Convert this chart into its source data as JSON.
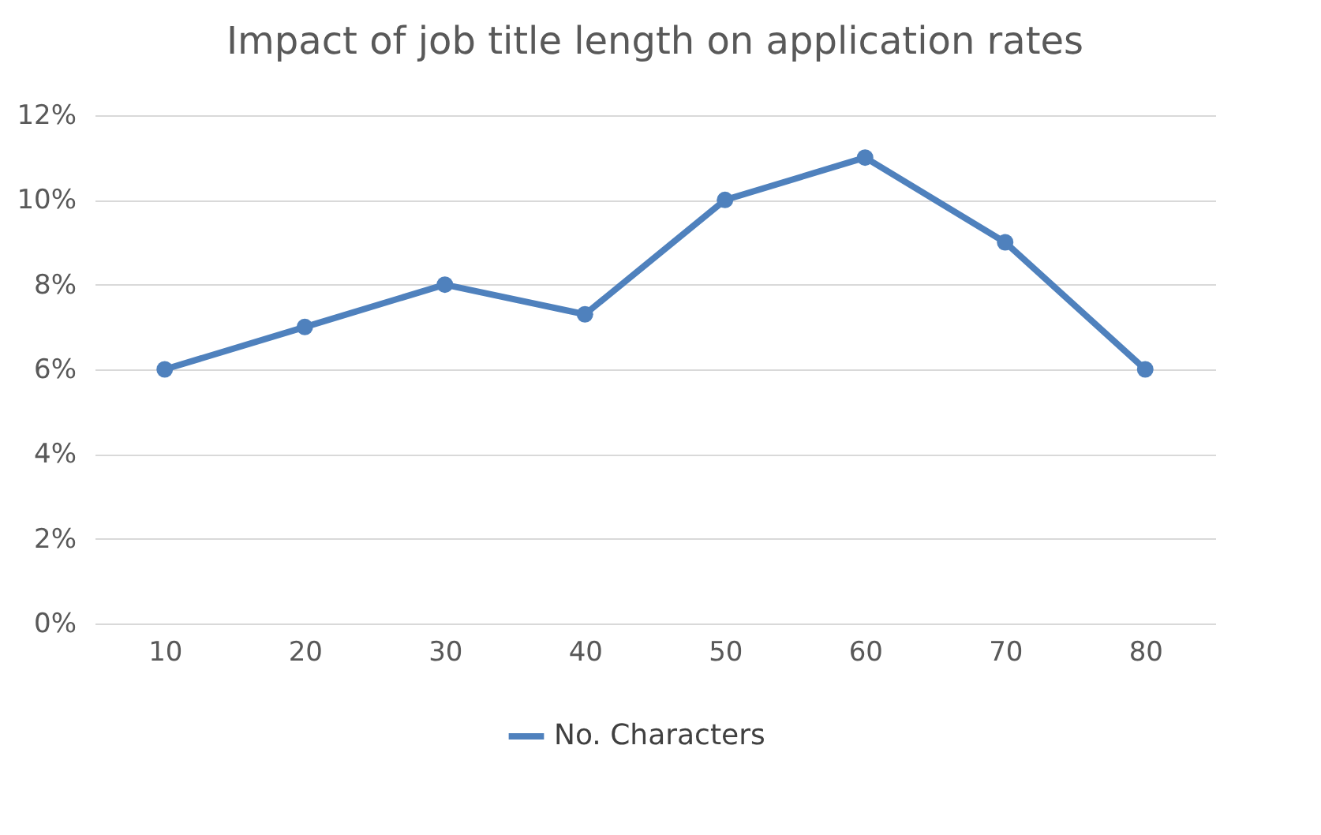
{
  "chart_data": {
    "type": "line",
    "title": "Impact of job title length on application rates",
    "categories": [
      "10",
      "20",
      "30",
      "40",
      "50",
      "60",
      "70",
      "80"
    ],
    "series": [
      {
        "name": "No. Characters",
        "color": "#4f81bd",
        "values": [
          6,
          7,
          8,
          7.3,
          10,
          11,
          9,
          6
        ]
      }
    ],
    "ylim": [
      0,
      12
    ],
    "yticks": [
      {
        "value": 0,
        "label": "0%"
      },
      {
        "value": 2,
        "label": "2%"
      },
      {
        "value": 4,
        "label": "4%"
      },
      {
        "value": 6,
        "label": "6%"
      },
      {
        "value": 8,
        "label": "8%"
      },
      {
        "value": 10,
        "label": "10%"
      },
      {
        "value": 12,
        "label": "12%"
      }
    ],
    "grid": "y",
    "legend": "bottom",
    "marker": "circle",
    "line_style": "solid"
  }
}
